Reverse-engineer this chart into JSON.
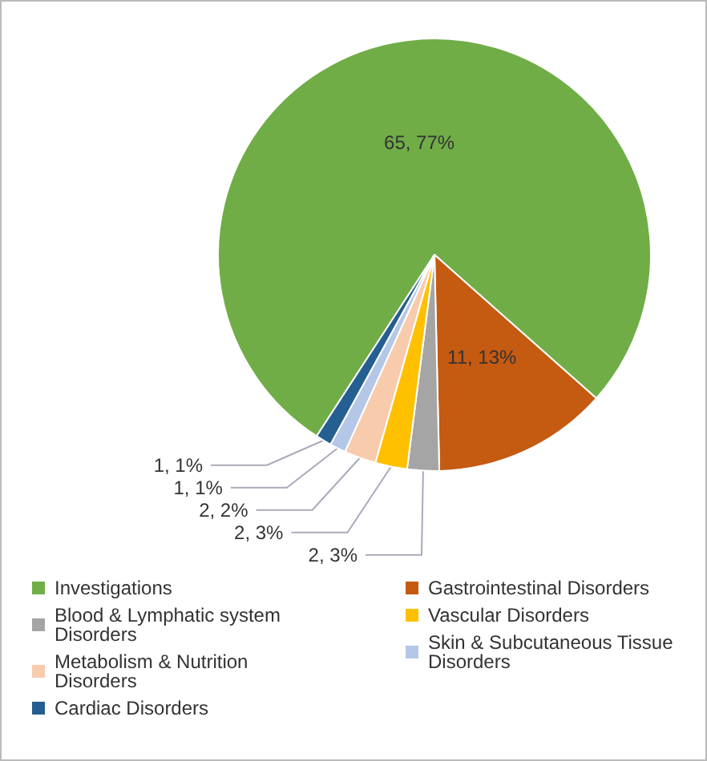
{
  "chart_data": {
    "type": "pie",
    "categories": [
      "Investigations",
      "Gastrointestinal Disorders",
      "Blood & Lymphatic system Disorders",
      "Vascular Disorders",
      "Metabolism & Nutrition Disorders",
      "Skin & Subcutaneous Tissue Disorders",
      "Cardiac Disorders"
    ],
    "values": [
      65,
      11,
      2,
      2,
      2,
      1,
      1
    ],
    "colors": [
      "#70ad47",
      "#c55a11",
      "#a5a5a5",
      "#ffc000",
      "#f8cbad",
      "#b4c7e7",
      "#255e91"
    ],
    "value_labels": [
      "65, 77%",
      "11, 13%",
      "2, 3%",
      "2, 3%",
      "2, 2%",
      "1, 1%",
      "1, 1%"
    ],
    "legend": "bottom"
  }
}
